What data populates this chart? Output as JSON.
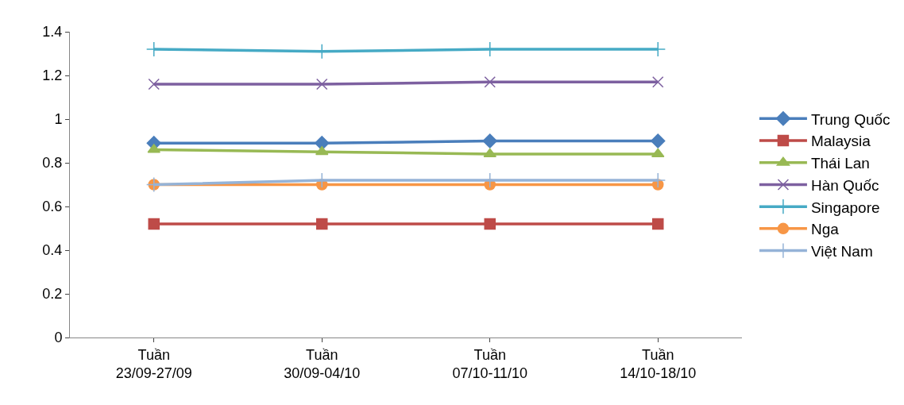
{
  "chart_data": {
    "type": "line",
    "categories": [
      "Tuần\n23/09-27/09",
      "Tuần\n30/09-04/10",
      "Tuần\n07/10-11/10",
      "Tuần\n14/10-18/10"
    ],
    "ylim": [
      0,
      1.4
    ],
    "yticks": [
      0,
      0.2,
      0.4,
      0.6,
      0.8,
      1,
      1.2,
      1.4
    ],
    "grid": false,
    "legend": "right",
    "line_style": "solid",
    "series": [
      {
        "name": "Trung Quốc",
        "color": "#4a7ebb",
        "marker": "diamond",
        "values": [
          0.89,
          0.89,
          0.9,
          0.9
        ]
      },
      {
        "name": "Malaysia",
        "color": "#be4b48",
        "marker": "square",
        "values": [
          0.52,
          0.52,
          0.52,
          0.52
        ]
      },
      {
        "name": "Thái Lan",
        "color": "#98b954",
        "marker": "triangle",
        "values": [
          0.86,
          0.85,
          0.84,
          0.84
        ]
      },
      {
        "name": "Hàn Quốc",
        "color": "#7d60a0",
        "marker": "x",
        "values": [
          1.16,
          1.16,
          1.17,
          1.17
        ]
      },
      {
        "name": "Singapore",
        "color": "#46aac5",
        "marker": "cross",
        "values": [
          1.32,
          1.31,
          1.32,
          1.32
        ]
      },
      {
        "name": "Nga",
        "color": "#f79646",
        "marker": "circle",
        "values": [
          0.7,
          0.7,
          0.7,
          0.7
        ]
      },
      {
        "name": "Việt Nam",
        "color": "#95b3d7",
        "marker": "cross",
        "values": [
          0.7,
          0.72,
          0.72,
          0.72
        ]
      }
    ]
  }
}
